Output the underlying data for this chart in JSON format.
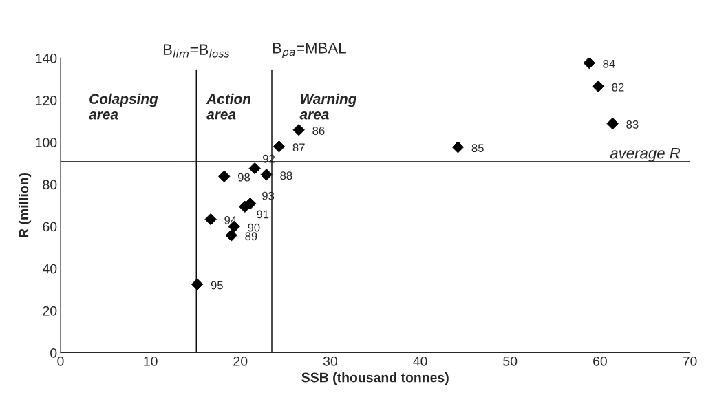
{
  "chart_data": {
    "type": "scatter",
    "xlabel": "SSB (thousand tonnes)",
    "ylabel": "R (million)",
    "x": [
      59.8,
      61.4,
      58.8,
      44.2,
      26.5,
      24.3,
      22.9,
      19.0,
      19.3,
      20.5,
      21.6,
      21.1,
      16.7,
      15.2,
      18.2
    ],
    "values": [
      126.6,
      108.9,
      137.7,
      97.7,
      105.9,
      98.0,
      84.6,
      55.8,
      59.9,
      69.4,
      87.6,
      70.9,
      63.4,
      32.5,
      83.8
    ],
    "color": "#000000",
    "marker": "diamond",
    "xlim": [
      0,
      70
    ],
    "xticks": [
      0,
      10,
      20,
      30,
      40,
      50,
      60,
      70
    ],
    "ylim": [
      0,
      140
    ],
    "yticks": [
      0,
      20,
      40,
      60,
      80,
      100,
      120,
      140
    ],
    "grid": false,
    "ref_lines": [
      {
        "axis": "x",
        "value": 15.1,
        "label": "B$_{lim}$=B$_{loss}$",
        "color": "#000000"
      },
      {
        "axis": "x",
        "value": 23.5,
        "label": "B$_{pa}$=MBAL",
        "color": "#000000"
      },
      {
        "axis": "y",
        "value": 90.8,
        "label": "average R",
        "color": "#000000"
      }
    ],
    "annotations": [
      "Colapsing\narea",
      "Action\narea",
      "Warning\narea",
      {
        "text": "82",
        "x": 59.8,
        "y": 126.6
      },
      {
        "text": "83",
        "x": 61.4,
        "y": 108.9
      },
      {
        "text": "84",
        "x": 58.8,
        "y": 137.7
      },
      {
        "text": "85",
        "x": 44.2,
        "y": 97.7
      },
      {
        "text": "86",
        "x": 26.5,
        "y": 105.9
      },
      {
        "text": "87",
        "x": 24.3,
        "y": 98.0
      },
      {
        "text": "88",
        "x": 22.9,
        "y": 84.6
      },
      {
        "text": "89",
        "x": 19.0,
        "y": 55.8
      },
      {
        "text": "90",
        "x": 19.3,
        "y": 59.9
      },
      {
        "text": "91",
        "x": 20.5,
        "y": 69.4
      },
      {
        "text": "92",
        "x": 21.6,
        "y": 87.6
      },
      {
        "text": "93",
        "x": 21.1,
        "y": 70.9
      },
      {
        "text": "94",
        "x": 16.7,
        "y": 63.4
      },
      {
        "text": "95",
        "x": 15.2,
        "y": 32.5
      },
      {
        "text": "98",
        "x": 18.2,
        "y": 83.8
      }
    ]
  }
}
